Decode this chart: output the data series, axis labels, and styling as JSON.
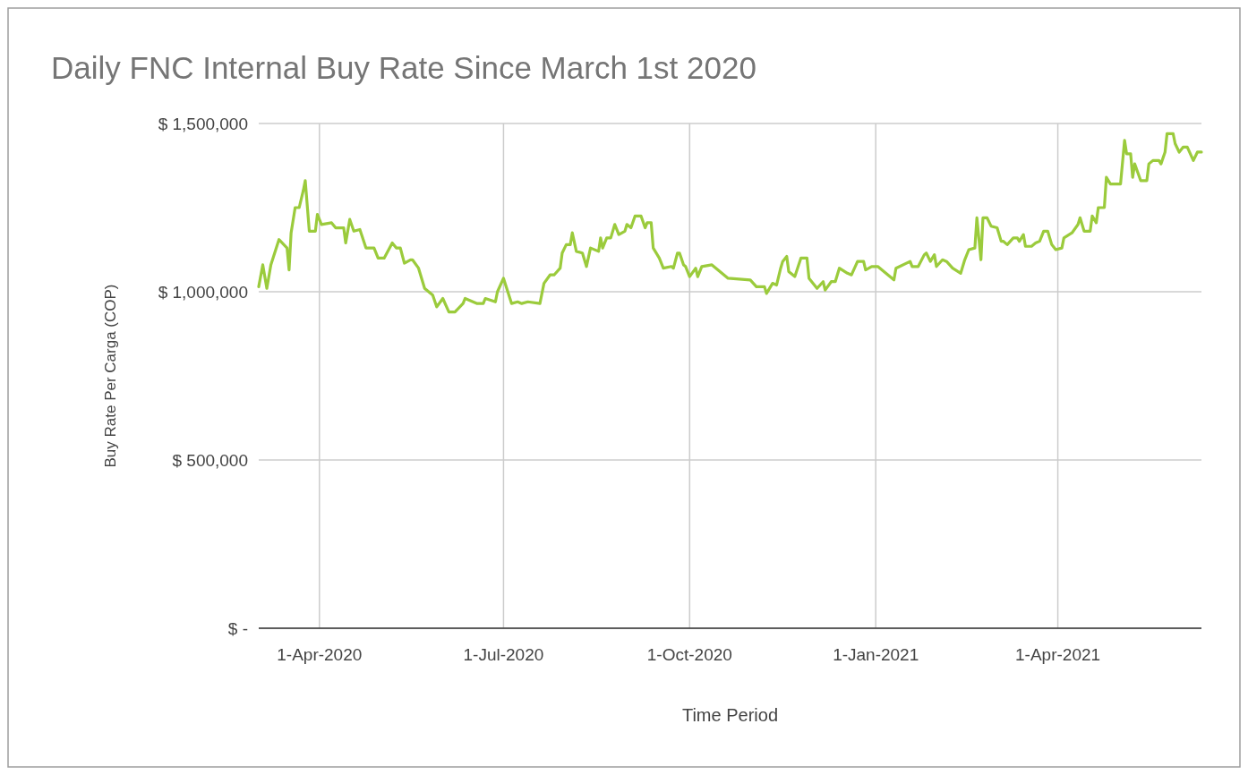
{
  "chart_data": {
    "type": "line",
    "title": "Daily FNC Internal Buy Rate Since March 1st 2020",
    "xlabel": "Time Period",
    "ylabel": "Buy Rate Per Carga (COP)",
    "xlim": [
      "2020-03-02",
      "2021-06-11"
    ],
    "xticks": [
      {
        "value": "2020-04-01",
        "label": "1-Apr-2020"
      },
      {
        "value": "2020-07-01",
        "label": "1-Jul-2020"
      },
      {
        "value": "2020-10-01",
        "label": "1-Oct-2020"
      },
      {
        "value": "2021-01-01",
        "label": "1-Jan-2021"
      },
      {
        "value": "2021-04-01",
        "label": "1-Apr-2021"
      }
    ],
    "ylim": [
      0,
      1500000
    ],
    "yticks": [
      {
        "value": 0,
        "label": "$ -"
      },
      {
        "value": 500000,
        "label": "$ 500,000"
      },
      {
        "value": 1000000,
        "label": "$ 1,000,000"
      },
      {
        "value": 1500000,
        "label": "$ 1,500,000"
      }
    ],
    "grid": true,
    "marker": "none",
    "line_style": "solid",
    "x": [
      "2020-03-02",
      "2020-03-04",
      "2020-03-06",
      "2020-03-08",
      "2020-03-12",
      "2020-03-16",
      "2020-03-17",
      "2020-03-18",
      "2020-03-20",
      "2020-03-22",
      "2020-03-24",
      "2020-03-25",
      "2020-03-27",
      "2020-03-30",
      "2020-03-31",
      "2020-04-02",
      "2020-04-07",
      "2020-04-09",
      "2020-04-13",
      "2020-04-14",
      "2020-04-16",
      "2020-04-18",
      "2020-04-21",
      "2020-04-24",
      "2020-04-28",
      "2020-04-30",
      "2020-05-03",
      "2020-05-07",
      "2020-05-09",
      "2020-05-11",
      "2020-05-13",
      "2020-05-16",
      "2020-05-17",
      "2020-05-20",
      "2020-05-23",
      "2020-05-27",
      "2020-05-29",
      "2020-06-01",
      "2020-06-04",
      "2020-06-07",
      "2020-06-11",
      "2020-06-12",
      "2020-06-18",
      "2020-06-21",
      "2020-06-22",
      "2020-06-27",
      "2020-06-28",
      "2020-07-01",
      "2020-07-05",
      "2020-07-08",
      "2020-07-10",
      "2020-07-13",
      "2020-07-19",
      "2020-07-21",
      "2020-07-24",
      "2020-07-26",
      "2020-07-29",
      "2020-07-30",
      "2020-08-01",
      "2020-08-03",
      "2020-08-04",
      "2020-08-06",
      "2020-08-09",
      "2020-08-11",
      "2020-08-13",
      "2020-08-17",
      "2020-08-18",
      "2020-08-19",
      "2020-08-21",
      "2020-08-23",
      "2020-08-25",
      "2020-08-27",
      "2020-08-30",
      "2020-08-31",
      "2020-09-02",
      "2020-09-04",
      "2020-09-07",
      "2020-09-09",
      "2020-09-10",
      "2020-09-12",
      "2020-09-13",
      "2020-09-16",
      "2020-09-18",
      "2020-09-22",
      "2020-09-23",
      "2020-09-25",
      "2020-09-26",
      "2020-09-28",
      "2020-09-29",
      "2020-10-01",
      "2020-10-04",
      "2020-10-05",
      "2020-10-07",
      "2020-10-12",
      "2020-10-16",
      "2020-10-20",
      "2020-10-31",
      "2020-11-03",
      "2020-11-07",
      "2020-11-08",
      "2020-11-11",
      "2020-11-13",
      "2020-11-15",
      "2020-11-16",
      "2020-11-18",
      "2020-11-19",
      "2020-11-22",
      "2020-11-25",
      "2020-11-28",
      "2020-11-29",
      "2020-12-03",
      "2020-12-06",
      "2020-12-07",
      "2020-12-10",
      "2020-12-12",
      "2020-12-14",
      "2020-12-18",
      "2020-12-20",
      "2020-12-23",
      "2020-12-26",
      "2020-12-27",
      "2020-12-30",
      "2021-01-02",
      "2021-01-06",
      "2021-01-10",
      "2021-01-11",
      "2021-01-18",
      "2021-01-19",
      "2021-01-22",
      "2021-01-25",
      "2021-01-26",
      "2021-01-28",
      "2021-01-30",
      "2021-01-31",
      "2021-02-03",
      "2021-02-05",
      "2021-02-08",
      "2021-02-12",
      "2021-02-14",
      "2021-02-16",
      "2021-02-19",
      "2021-02-20",
      "2021-02-22",
      "2021-02-23",
      "2021-02-25",
      "2021-02-27",
      "2021-03-02",
      "2021-03-04",
      "2021-03-05",
      "2021-03-07",
      "2021-03-10",
      "2021-03-12",
      "2021-03-13",
      "2021-03-15",
      "2021-03-16",
      "2021-03-19",
      "2021-03-21",
      "2021-03-23",
      "2021-03-25",
      "2021-03-27",
      "2021-03-29",
      "2021-03-31",
      "2021-04-03",
      "2021-04-04",
      "2021-04-08",
      "2021-04-11",
      "2021-04-12",
      "2021-04-14",
      "2021-04-17",
      "2021-04-18",
      "2021-04-20",
      "2021-04-21",
      "2021-04-24",
      "2021-04-25",
      "2021-04-27",
      "2021-05-02",
      "2021-05-04",
      "2021-05-05",
      "2021-05-07",
      "2021-05-08",
      "2021-05-09",
      "2021-05-12",
      "2021-05-15",
      "2021-05-16",
      "2021-05-18",
      "2021-05-21",
      "2021-05-22",
      "2021-05-24",
      "2021-05-25",
      "2021-05-28",
      "2021-05-29",
      "2021-05-31",
      "2021-06-02",
      "2021-06-04",
      "2021-06-07",
      "2021-06-09",
      "2021-06-11"
    ],
    "series": [
      {
        "color": "#9bcb3c",
        "values": [
          1015000,
          1080000,
          1010000,
          1080000,
          1155000,
          1130000,
          1065000,
          1175000,
          1250000,
          1250000,
          1300000,
          1330000,
          1180000,
          1180000,
          1230000,
          1200000,
          1205000,
          1190000,
          1190000,
          1145000,
          1215000,
          1180000,
          1185000,
          1130000,
          1130000,
          1100000,
          1100000,
          1145000,
          1130000,
          1130000,
          1085000,
          1095000,
          1095000,
          1070000,
          1010000,
          990000,
          955000,
          980000,
          940000,
          940000,
          965000,
          980000,
          965000,
          965000,
          980000,
          970000,
          1000000,
          1040000,
          965000,
          970000,
          965000,
          970000,
          965000,
          1025000,
          1050000,
          1050000,
          1070000,
          1115000,
          1140000,
          1140000,
          1175000,
          1120000,
          1115000,
          1075000,
          1130000,
          1120000,
          1160000,
          1130000,
          1160000,
          1160000,
          1200000,
          1170000,
          1180000,
          1200000,
          1190000,
          1225000,
          1225000,
          1190000,
          1205000,
          1205000,
          1130000,
          1100000,
          1070000,
          1075000,
          1070000,
          1115000,
          1115000,
          1080000,
          1075000,
          1045000,
          1070000,
          1045000,
          1075000,
          1080000,
          1060000,
          1040000,
          1035000,
          1015000,
          1015000,
          995000,
          1025000,
          1020000,
          1070000,
          1090000,
          1105000,
          1060000,
          1045000,
          1100000,
          1100000,
          1040000,
          1010000,
          1030000,
          1005000,
          1030000,
          1030000,
          1070000,
          1055000,
          1050000,
          1090000,
          1090000,
          1065000,
          1075000,
          1075000,
          1055000,
          1035000,
          1070000,
          1090000,
          1075000,
          1075000,
          1110000,
          1115000,
          1090000,
          1110000,
          1075000,
          1095000,
          1090000,
          1070000,
          1055000,
          1095000,
          1125000,
          1130000,
          1220000,
          1095000,
          1220000,
          1220000,
          1195000,
          1190000,
          1150000,
          1150000,
          1140000,
          1160000,
          1160000,
          1150000,
          1170000,
          1135000,
          1135000,
          1145000,
          1150000,
          1180000,
          1180000,
          1140000,
          1125000,
          1130000,
          1160000,
          1175000,
          1200000,
          1220000,
          1180000,
          1180000,
          1225000,
          1205000,
          1250000,
          1250000,
          1340000,
          1320000,
          1320000,
          1450000,
          1410000,
          1410000,
          1340000,
          1380000,
          1330000,
          1330000,
          1380000,
          1390000,
          1390000,
          1380000,
          1415000,
          1470000,
          1470000,
          1440000,
          1415000,
          1430000,
          1430000,
          1390000,
          1415000,
          1415000
        ]
      }
    ]
  }
}
